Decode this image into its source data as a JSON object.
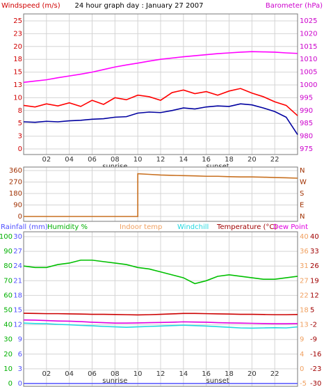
{
  "chart_data": [
    {
      "type": "line",
      "title": "24 hour graph day : January 27 2007",
      "grid": true,
      "xlim": [
        0,
        24
      ],
      "xticks": [
        {
          "value": 2,
          "label": "02"
        },
        {
          "value": 4,
          "label": "04"
        },
        {
          "value": 6,
          "label": "06"
        },
        {
          "value": 8,
          "label": "08"
        },
        10,
        12,
        14,
        16,
        18,
        20,
        22
      ],
      "annotations": [
        {
          "x": 8,
          "label": "sunrise"
        },
        {
          "x": 17,
          "label": "sunset"
        }
      ],
      "axes": [
        {
          "label": "Windspeed (m/s)",
          "side": "left",
          "color": "#d00000",
          "lim": [
            0,
            25
          ],
          "ticks": [
            0,
            {
              "value": 2.5,
              "label": "3"
            },
            5,
            {
              "value": 7.5,
              "label": "8"
            },
            10,
            {
              "value": 12.5,
              "label": "13"
            },
            15,
            {
              "value": 17.5,
              "label": "18"
            },
            20,
            {
              "value": 22.5,
              "label": "23"
            },
            25
          ]
        },
        {
          "label": "Barometer (hPa)",
          "side": "right",
          "color": "#cc00cc",
          "lim": [
            975,
            1025
          ],
          "ticks": [
            975,
            980,
            985,
            990,
            995,
            1000,
            1005,
            1010,
            1015,
            1020,
            1025
          ]
        }
      ],
      "x": [
        0,
        1,
        2,
        3,
        4,
        5,
        6,
        7,
        8,
        9,
        10,
        11,
        12,
        13,
        14,
        15,
        16,
        17,
        18,
        19,
        20,
        21,
        22,
        23,
        24
      ],
      "series": [
        {
          "color": "#ff0000",
          "axis": 0,
          "values": [
            8.5,
            8.2,
            8.8,
            8.4,
            9,
            8.3,
            9.5,
            8.7,
            10,
            9.6,
            10.5,
            10.2,
            9.5,
            11,
            11.5,
            10.8,
            11.2,
            10.5,
            11.3,
            11.8,
            10.9,
            10.2,
            9.2,
            8.5,
            6.5
          ]
        },
        {
          "color": "#0000a0",
          "axis": 0,
          "values": [
            5.3,
            5.2,
            5.4,
            5.3,
            5.5,
            5.6,
            5.8,
            5.9,
            6.2,
            6.3,
            7,
            7.2,
            7.1,
            7.5,
            8,
            7.8,
            8.2,
            8.4,
            8.3,
            8.8,
            8.6,
            8,
            7.3,
            6.2,
            2.8
          ]
        },
        {
          "color": "#ff00ff",
          "axis": 1,
          "values": [
            1001,
            1001.5,
            1002,
            1002.8,
            1003.5,
            1004.2,
            1005,
            1006,
            1007,
            1007.8,
            1008.5,
            1009.3,
            1010,
            1010.5,
            1011,
            1011.4,
            1011.8,
            1012.2,
            1012.5,
            1012.8,
            1013,
            1012.9,
            1012.8,
            1012.5,
            1012.3
          ]
        }
      ]
    },
    {
      "type": "line",
      "grid": true,
      "xlim": [
        0,
        24
      ],
      "axes": [
        {
          "side": "left",
          "color": "#a03000",
          "lim": [
            0,
            360
          ],
          "ticks": [
            0,
            90,
            180,
            270,
            360
          ]
        },
        {
          "side": "right",
          "color": "#a03000",
          "lim": [
            0,
            360
          ],
          "ticks": [
            {
              "value": 0,
              "label": "N"
            },
            {
              "value": 90,
              "label": "E"
            },
            {
              "value": 180,
              "label": "S"
            },
            {
              "value": 270,
              "label": "W"
            },
            {
              "value": 360,
              "label": "N"
            }
          ]
        }
      ],
      "x": [
        0,
        1,
        2,
        3,
        4,
        5,
        6,
        7,
        8,
        9,
        10,
        10,
        11,
        12,
        13,
        14,
        15,
        16,
        17,
        18,
        19,
        20,
        21,
        22,
        23,
        24
      ],
      "series": [
        {
          "color": "#c87020",
          "axis": 0,
          "values": [
            0,
            0,
            0,
            0,
            0,
            0,
            0,
            0,
            0,
            0,
            0,
            335,
            330,
            325,
            322,
            320,
            318,
            315,
            315,
            312,
            310,
            310,
            308,
            305,
            303,
            300
          ]
        }
      ]
    },
    {
      "type": "line",
      "grid": true,
      "xlim": [
        0,
        24
      ],
      "xticks": [
        {
          "value": 2,
          "label": "02"
        },
        {
          "value": 4,
          "label": "04"
        },
        {
          "value": 6,
          "label": "06"
        },
        {
          "value": 8,
          "label": "08"
        },
        10,
        12,
        14,
        16,
        18,
        20,
        22
      ],
      "annotations": [
        {
          "x": 8,
          "label": "sunrise"
        },
        {
          "x": 17,
          "label": "sunset"
        }
      ],
      "axes": [
        {
          "label": "Rainfall (mm)",
          "side": "left",
          "color": "#5050ff",
          "lim": [
            0,
            30
          ],
          "ticks": [
            0,
            3,
            6,
            9,
            12,
            15,
            18,
            21,
            24,
            27,
            30
          ]
        },
        {
          "label": "Humidity %",
          "side": "left",
          "color": "#00b000",
          "lim": [
            0,
            100
          ],
          "ticks": [
            0,
            10,
            20,
            30,
            40,
            50,
            60,
            70,
            80,
            90,
            100
          ]
        },
        {
          "label": "Indoor temp",
          "side": "right",
          "color": "#f0a060",
          "lim": [
            -5,
            40
          ],
          "ticks": [
            -5,
            {
              "value": -0.5,
              "label": "0"
            },
            4,
            {
              "value": 8.5,
              "label": "9"
            },
            13,
            {
              "value": 17.5,
              "label": "18"
            },
            22,
            {
              "value": 26.5,
              "label": "27"
            },
            31,
            {
              "value": 35.5,
              "label": "36"
            },
            40
          ]
        },
        {
          "label": "Temperature (°C)",
          "side": "right",
          "color": "#a00000",
          "lim": [
            -30,
            40
          ],
          "ticks": [
            -30,
            -23,
            -16,
            -9,
            -2,
            5,
            12,
            19,
            26,
            33,
            40
          ]
        }
      ],
      "x": [
        0,
        1,
        2,
        3,
        4,
        5,
        6,
        7,
        8,
        9,
        10,
        11,
        12,
        13,
        14,
        15,
        16,
        17,
        18,
        19,
        20,
        21,
        22,
        23,
        24
      ],
      "series": [
        {
          "color": "#5050ff",
          "axis": 0,
          "values": [
            0,
            0,
            0,
            0,
            0,
            0,
            0,
            0,
            0,
            0,
            0,
            0,
            0,
            0,
            0,
            0,
            0,
            0,
            0,
            0,
            0,
            0,
            0,
            0,
            0
          ]
        },
        {
          "color": "#00c000",
          "axis": 1,
          "values": [
            80,
            79,
            79,
            81,
            82,
            84,
            84,
            83,
            82,
            81,
            79,
            78,
            76,
            74,
            72,
            68,
            70,
            73,
            74,
            73,
            72,
            71,
            71,
            72,
            73
          ]
        },
        {
          "color": "#cc0000",
          "axis": 3,
          "values": [
            3.5,
            3.4,
            3.3,
            3.3,
            3.2,
            3.1,
            3,
            3,
            2.9,
            2.8,
            2.7,
            2.8,
            3,
            3.2,
            3.4,
            3.4,
            3.3,
            3.2,
            3.1,
            3,
            3,
            2.9,
            2.8,
            2.8,
            2.9
          ]
        },
        {
          "name": "Dew Point",
          "color": "#e000e0",
          "axis": 3,
          "values": [
            0.3,
            0.2,
            0,
            -0.2,
            -0.3,
            -0.5,
            -0.8,
            -1,
            -1.2,
            -1.2,
            -1.1,
            -1,
            -0.9,
            -0.8,
            -0.6,
            -0.7,
            -0.8,
            -1,
            -1.1,
            -1.2,
            -1.3,
            -1.4,
            -1.5,
            -1.5,
            -1.4
          ]
        },
        {
          "name": "Windchill",
          "color": "#20d8e0",
          "axis": 3,
          "values": [
            -1.2,
            -1.4,
            -1.5,
            -1.8,
            -2,
            -2.3,
            -2.5,
            -2.8,
            -3,
            -3.2,
            -3,
            -2.8,
            -2.6,
            -2.4,
            -2.2,
            -2.4,
            -2.6,
            -2.9,
            -3.2,
            -3.5,
            -3.6,
            -3.5,
            -3.4,
            -3.5,
            -3
          ]
        }
      ]
    }
  ]
}
